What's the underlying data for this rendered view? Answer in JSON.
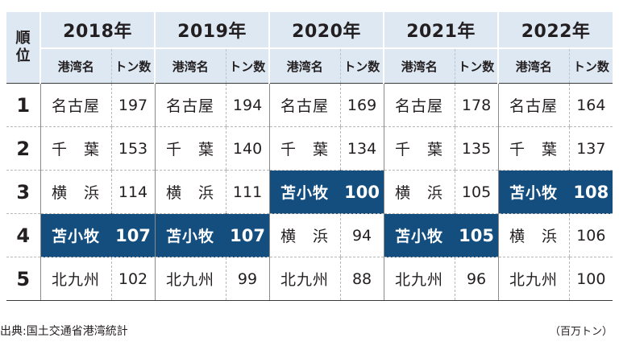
{
  "table": {
    "rank_header": "順位",
    "port_col": "港湾名",
    "ton_col": "トン数",
    "years": [
      "2018年",
      "2019年",
      "2020年",
      "2021年",
      "2022年"
    ],
    "rows": [
      {
        "rank": "1",
        "cells": [
          {
            "port": "名古屋",
            "ton": "197",
            "highlight": false
          },
          {
            "port": "名古屋",
            "ton": "194",
            "highlight": false
          },
          {
            "port": "名古屋",
            "ton": "169",
            "highlight": false
          },
          {
            "port": "名古屋",
            "ton": "178",
            "highlight": false
          },
          {
            "port": "名古屋",
            "ton": "164",
            "highlight": false
          }
        ]
      },
      {
        "rank": "2",
        "cells": [
          {
            "port": "千　葉",
            "ton": "153",
            "highlight": false
          },
          {
            "port": "千　葉",
            "ton": "140",
            "highlight": false
          },
          {
            "port": "千　葉",
            "ton": "134",
            "highlight": false
          },
          {
            "port": "千　葉",
            "ton": "135",
            "highlight": false
          },
          {
            "port": "千　葉",
            "ton": "137",
            "highlight": false
          }
        ]
      },
      {
        "rank": "3",
        "cells": [
          {
            "port": "横　浜",
            "ton": "114",
            "highlight": false
          },
          {
            "port": "横　浜",
            "ton": "111",
            "highlight": false
          },
          {
            "port": "苫小牧",
            "ton": "100",
            "highlight": true
          },
          {
            "port": "横　浜",
            "ton": "105",
            "highlight": false
          },
          {
            "port": "苫小牧",
            "ton": "108",
            "highlight": true
          }
        ]
      },
      {
        "rank": "4",
        "cells": [
          {
            "port": "苫小牧",
            "ton": "107",
            "highlight": true
          },
          {
            "port": "苫小牧",
            "ton": "107",
            "highlight": true
          },
          {
            "port": "横　浜",
            "ton": "94",
            "highlight": false
          },
          {
            "port": "苫小牧",
            "ton": "105",
            "highlight": true
          },
          {
            "port": "横　浜",
            "ton": "106",
            "highlight": false
          }
        ]
      },
      {
        "rank": "5",
        "cells": [
          {
            "port": "北九州",
            "ton": "102",
            "highlight": false
          },
          {
            "port": "北九州",
            "ton": "99",
            "highlight": false
          },
          {
            "port": "北九州",
            "ton": "88",
            "highlight": false
          },
          {
            "port": "北九州",
            "ton": "96",
            "highlight": false
          },
          {
            "port": "北九州",
            "ton": "100",
            "highlight": false
          }
        ]
      }
    ]
  },
  "footnote": {
    "source": "出典:国土交通省港湾統計",
    "unit": "（百万トン）"
  },
  "colors": {
    "header_bg": "#dde8f3",
    "highlight_bg": "#144e7e",
    "highlight_text": "#ffffff"
  }
}
